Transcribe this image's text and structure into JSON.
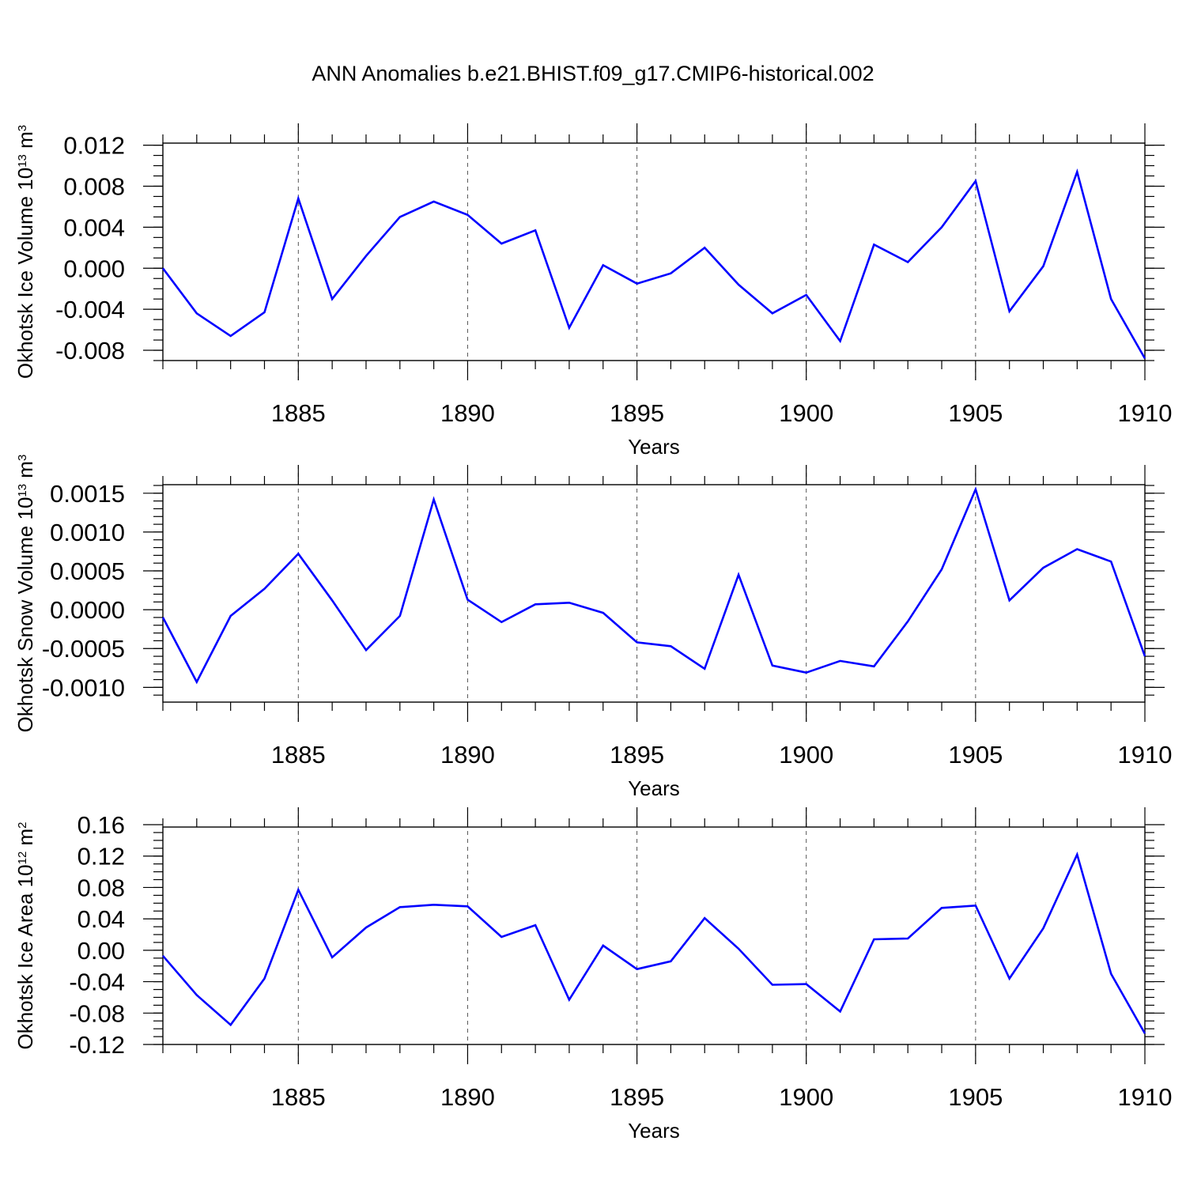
{
  "title": "ANN Anomalies b.e21.BHIST.f09_g17.CMIP6-historical.002",
  "line_color": "#0000ff",
  "chart_data": [
    {
      "type": "line",
      "ylabel": "Okhotsk Ice Volume 10",
      "ylabel_sup": "13",
      "ylabel_unit": " m",
      "ylabel_unit_sup": "3",
      "xlabel": "Years",
      "xlim": [
        1881,
        1910
      ],
      "ylim": [
        -0.009,
        0.0122
      ],
      "yticks": [
        0.012,
        0.008,
        0.004,
        0.0,
        -0.004,
        -0.008
      ],
      "ytick_labels": [
        "0.012",
        "0.008",
        "0.004",
        "0.000",
        "-0.004",
        "-0.008"
      ],
      "minor_step": 0.001,
      "xticks": [
        1885,
        1890,
        1895,
        1900,
        1905,
        1910
      ],
      "xtick_labels": [
        "1885",
        "1890",
        "1895",
        "1900",
        "1905",
        "1910"
      ],
      "grid": "vertical dashed at major x ticks",
      "series": [
        {
          "x": [
            1881,
            1882,
            1883,
            1884,
            1885,
            1886,
            1887,
            1888,
            1889,
            1890,
            1891,
            1892,
            1893,
            1894,
            1895,
            1896,
            1897,
            1898,
            1899,
            1900,
            1901,
            1902,
            1903,
            1904,
            1905,
            1906,
            1907,
            1908,
            1909,
            1910
          ],
          "values": [
            0.0,
            -0.0044,
            -0.0066,
            -0.0043,
            0.0068,
            -0.003,
            0.0012,
            0.005,
            0.0065,
            0.0052,
            0.0024,
            0.0037,
            -0.0058,
            0.0003,
            -0.0015,
            -0.0005,
            0.002,
            -0.0016,
            -0.0044,
            -0.0026,
            -0.0071,
            0.0023,
            0.0006,
            0.004,
            0.0085,
            -0.0042,
            0.0002,
            0.0094,
            -0.003,
            -0.0088
          ]
        }
      ]
    },
    {
      "type": "line",
      "ylabel": "Okhotsk Snow Volume 10",
      "ylabel_sup": "13",
      "ylabel_unit": " m",
      "ylabel_unit_sup": "3",
      "xlabel": "Years",
      "xlim": [
        1881,
        1910
      ],
      "ylim": [
        -0.00119,
        0.00161
      ],
      "yticks": [
        0.0015,
        0.001,
        0.0005,
        0.0,
        -0.0005,
        -0.001
      ],
      "ytick_labels": [
        "0.0015",
        "0.0010",
        "0.0005",
        "0.0000",
        "-0.0005",
        "-0.0010"
      ],
      "minor_step": 0.0001,
      "xticks": [
        1885,
        1890,
        1895,
        1900,
        1905,
        1910
      ],
      "xtick_labels": [
        "1885",
        "1890",
        "1895",
        "1900",
        "1905",
        "1910"
      ],
      "grid": "vertical dashed at major x ticks",
      "series": [
        {
          "x": [
            1881,
            1882,
            1883,
            1884,
            1885,
            1886,
            1887,
            1888,
            1889,
            1890,
            1891,
            1892,
            1893,
            1894,
            1895,
            1896,
            1897,
            1898,
            1899,
            1900,
            1901,
            1902,
            1903,
            1904,
            1905,
            1906,
            1907,
            1908,
            1909,
            1910
          ],
          "values": [
            -0.0001,
            -0.00093,
            -8e-05,
            0.00027,
            0.00072,
            0.00012,
            -0.00052,
            -8e-05,
            0.00142,
            0.00013,
            -0.00016,
            7e-05,
            9e-05,
            -4e-05,
            -0.00042,
            -0.00047,
            -0.00076,
            0.00045,
            -0.00072,
            -0.00081,
            -0.00066,
            -0.00073,
            -0.00015,
            0.00052,
            0.00155,
            0.00012,
            0.00054,
            0.00078,
            0.00062,
            -0.0006
          ]
        }
      ]
    },
    {
      "type": "line",
      "ylabel": "Okhotsk Ice Area 10",
      "ylabel_sup": "12",
      "ylabel_unit": " m",
      "ylabel_unit_sup": "2",
      "xlabel": "Years",
      "xlim": [
        1881,
        1910
      ],
      "ylim": [
        -0.12,
        0.157
      ],
      "yticks": [
        0.16,
        0.12,
        0.08,
        0.04,
        0.0,
        -0.04,
        -0.08,
        -0.12
      ],
      "ytick_labels": [
        "0.16",
        "0.12",
        "0.08",
        "0.04",
        "0.00",
        "-0.04",
        "-0.08",
        "-0.12"
      ],
      "minor_step": 0.01,
      "xticks": [
        1885,
        1890,
        1895,
        1900,
        1905,
        1910
      ],
      "xtick_labels": [
        "1885",
        "1890",
        "1895",
        "1900",
        "1905",
        "1910"
      ],
      "grid": "vertical dashed at major x ticks",
      "series": [
        {
          "x": [
            1881,
            1882,
            1883,
            1884,
            1885,
            1886,
            1887,
            1888,
            1889,
            1890,
            1891,
            1892,
            1893,
            1894,
            1895,
            1896,
            1897,
            1898,
            1899,
            1900,
            1901,
            1902,
            1903,
            1904,
            1905,
            1906,
            1907,
            1908,
            1909,
            1910
          ],
          "values": [
            -0.007,
            -0.057,
            -0.095,
            -0.036,
            0.077,
            -0.009,
            0.029,
            0.055,
            0.058,
            0.056,
            0.017,
            0.032,
            -0.063,
            0.006,
            -0.024,
            -0.014,
            0.041,
            0.002,
            -0.044,
            -0.043,
            -0.078,
            0.014,
            0.015,
            0.054,
            0.057,
            -0.036,
            0.028,
            0.122,
            -0.03,
            -0.106
          ]
        }
      ]
    }
  ]
}
